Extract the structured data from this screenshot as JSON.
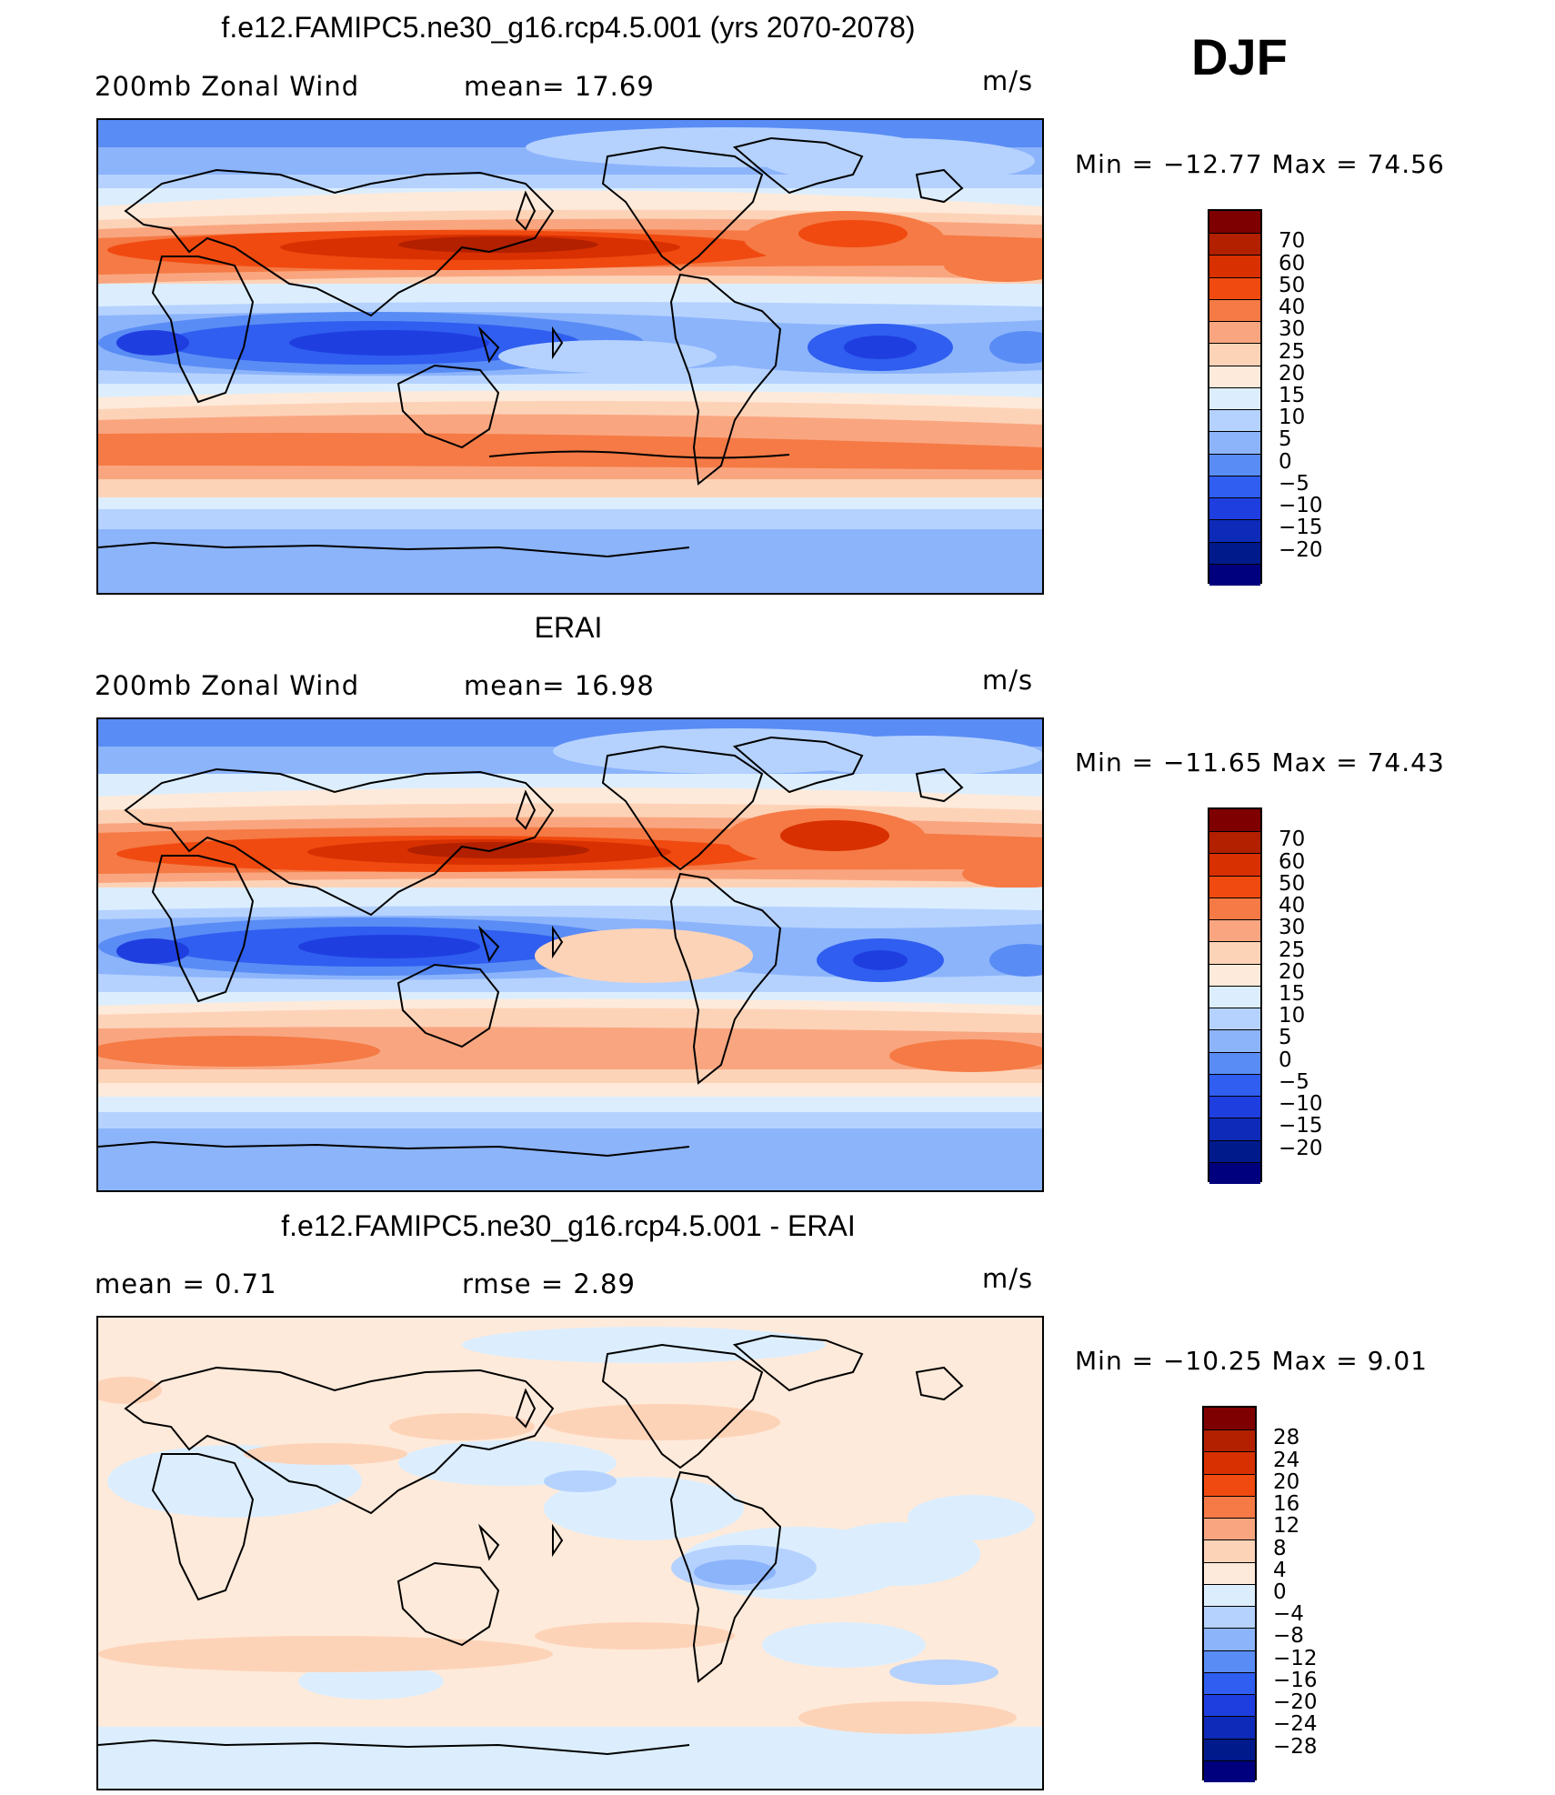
{
  "season": "DJF",
  "units": "m/s",
  "panels": [
    {
      "title": "f.e12.FAMIPC5.ne30_g16.rcp4.5.001 (yrs 2070-2078)",
      "sub_left": "200mb Zonal Wind",
      "sub_mid": "mean=   17.69",
      "units": "m/s",
      "minmax": "Min  =  −12.77  Max  =     74.56",
      "colorbar": {
        "colors": [
          "#7f0000",
          "#b22000",
          "#d83000",
          "#f04a10",
          "#f57a45",
          "#f9a680",
          "#fdd3b8",
          "#feeada",
          "#dceefe",
          "#b5d2ff",
          "#8cb4fb",
          "#5a8cf5",
          "#2f5ef0",
          "#1f3ee0",
          "#0d2ab8",
          "#001a8c",
          "#00007e"
        ],
        "labels": [
          "70",
          "60",
          "50",
          "40",
          "30",
          "25",
          "20",
          "15",
          "10",
          "5",
          "0",
          "−5",
          "−10",
          "−15",
          "−20"
        ]
      }
    },
    {
      "title": "ERAI",
      "sub_left": "200mb Zonal Wind",
      "sub_mid": "mean=   16.98",
      "units": "m/s",
      "minmax": "Min  =  −11.65  Max  =     74.43",
      "colorbar": {
        "colors": [
          "#7f0000",
          "#b22000",
          "#d83000",
          "#f04a10",
          "#f57a45",
          "#f9a680",
          "#fdd3b8",
          "#feeada",
          "#dceefe",
          "#b5d2ff",
          "#8cb4fb",
          "#5a8cf5",
          "#2f5ef0",
          "#1f3ee0",
          "#0d2ab8",
          "#001a8c",
          "#00007e"
        ],
        "labels": [
          "70",
          "60",
          "50",
          "40",
          "30",
          "25",
          "20",
          "15",
          "10",
          "5",
          "0",
          "−5",
          "−10",
          "−15",
          "−20"
        ]
      }
    },
    {
      "title": "f.e12.FAMIPC5.ne30_g16.rcp4.5.001 - ERAI",
      "sub_left": "mean  =     0.71",
      "sub_mid": "rmse  =     2.89",
      "units": "m/s",
      "minmax": "Min  =  −10.25  Max  =      9.01",
      "colorbar": {
        "colors": [
          "#7f0000",
          "#b22000",
          "#d83000",
          "#f04a10",
          "#f57a45",
          "#f9a680",
          "#fdd3b8",
          "#feeada",
          "#dceefe",
          "#b5d2ff",
          "#8cb4fb",
          "#5a8cf5",
          "#2f5ef0",
          "#1f3ee0",
          "#0d2ab8",
          "#001a8c",
          "#00007e"
        ],
        "labels": [
          "28",
          "24",
          "20",
          "16",
          "12",
          "8",
          "4",
          "0",
          "−4",
          "−8",
          "−12",
          "−16",
          "−20",
          "−24",
          "−28"
        ]
      }
    }
  ]
}
